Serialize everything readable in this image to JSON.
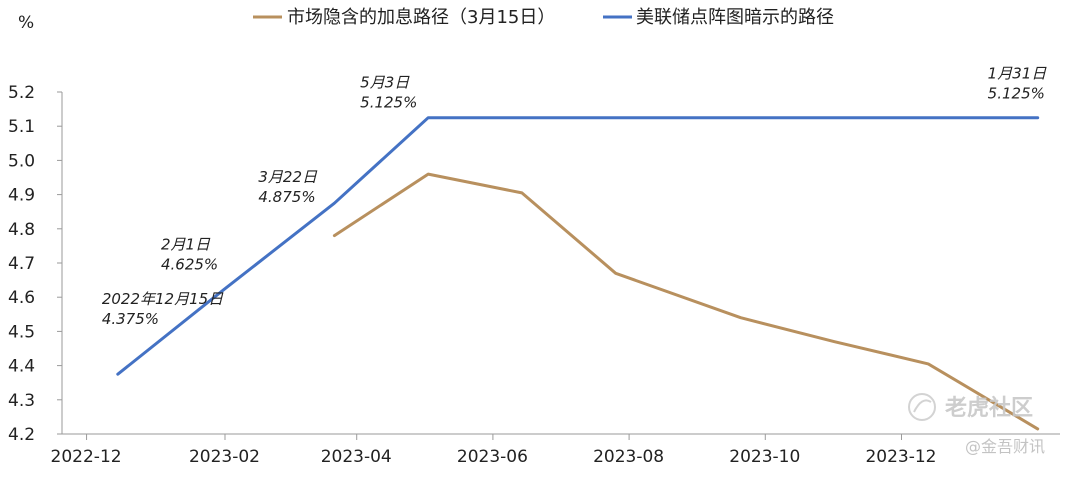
{
  "chart_data": {
    "type": "line",
    "unit": "%",
    "ylim": [
      4.2,
      5.2
    ],
    "yticks": [
      "4.2",
      "4.3",
      "4.4",
      "4.5",
      "4.6",
      "4.7",
      "4.8",
      "4.9",
      "5.0",
      "5.1",
      "5.2"
    ],
    "xlim": [
      "2022-11-20",
      "2024-02-10"
    ],
    "xticks": [
      {
        "label": "2022-12",
        "date": "2022-12-01"
      },
      {
        "label": "2023-02",
        "date": "2023-02-01"
      },
      {
        "label": "2023-04",
        "date": "2023-04-01"
      },
      {
        "label": "2023-06",
        "date": "2023-06-01"
      },
      {
        "label": "2023-08",
        "date": "2023-08-01"
      },
      {
        "label": "2023-10",
        "date": "2023-10-01"
      },
      {
        "label": "2023-12",
        "date": "2023-12-01"
      }
    ],
    "grid": false,
    "legend": "top",
    "series": [
      {
        "name": "市场隐含的加息路径（3月15日）",
        "color": "#B8905E",
        "x": [
          "2023-03-22",
          "2023-05-03",
          "2023-06-14",
          "2023-07-26",
          "2023-09-20",
          "2023-11-01",
          "2023-12-13",
          "2024-01-31"
        ],
        "y": [
          4.78,
          4.96,
          4.905,
          4.67,
          4.54,
          4.47,
          4.405,
          4.215
        ]
      },
      {
        "name": "美联储点阵图暗示的路径",
        "color": "#4472C4",
        "x": [
          "2022-12-15",
          "2023-02-01",
          "2023-03-22",
          "2023-05-03",
          "2024-01-31"
        ],
        "y": [
          4.375,
          4.625,
          4.875,
          5.125,
          5.125
        ]
      }
    ],
    "annotations": [
      {
        "date_label": "2022年12月15日",
        "value_label": "4.375%"
      },
      {
        "date_label": "2月1日",
        "value_label": "4.625%"
      },
      {
        "date_label": "3月22日",
        "value_label": "4.875%"
      },
      {
        "date_label": "5月3日",
        "value_label": "5.125%"
      },
      {
        "date_label": "1月31日",
        "value_label": "5.125%"
      }
    ]
  },
  "watermark": {
    "line1": "老虎社区",
    "line2": "@金吾财讯"
  }
}
